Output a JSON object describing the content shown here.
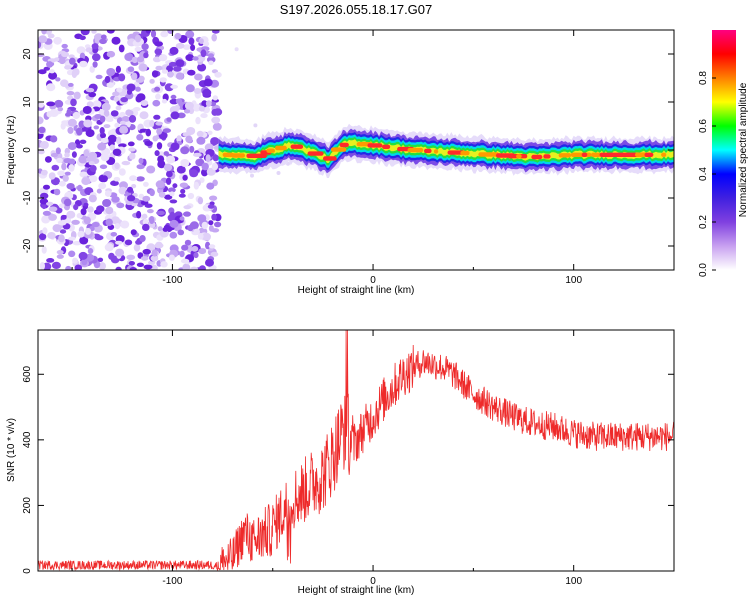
{
  "title": "S197.2026.055.18.17.G07",
  "chart_data": [
    {
      "type": "heatmap",
      "name": "spectrogram",
      "xlabel": "Height of straight line (km)",
      "ylabel": "Frequency (Hz)",
      "xlim": [
        -167,
        150
      ],
      "ylim": [
        -25,
        25
      ],
      "xticks": [
        -100,
        0,
        100
      ],
      "xtick_labels": [
        "-100",
        "0",
        "100"
      ],
      "yticks": [
        -20,
        -10,
        0,
        10,
        20
      ],
      "ytick_labels": [
        "-20",
        "-10",
        "0",
        "10",
        "20"
      ],
      "noise_region_x": [
        -167,
        -77
      ],
      "signal_start_x": -77,
      "ridge": {
        "x": [
          -77,
          -70,
          -60,
          -50,
          -40,
          -30,
          -22,
          -15,
          -10,
          0,
          10,
          20,
          40,
          60,
          80,
          100,
          120,
          150
        ],
        "freq_hz": [
          -1,
          -1,
          -1.5,
          0,
          1,
          -0.5,
          -2,
          1,
          1.5,
          1,
          0.5,
          0,
          -0.5,
          -1,
          -1.5,
          -1,
          -1,
          -1
        ]
      },
      "colorbar": {
        "label": "Normalized spectral amplitude",
        "range": [
          0,
          1
        ],
        "ticks": [
          0.0,
          0.2,
          0.4,
          0.6,
          0.8
        ],
        "tick_labels": [
          "0.0",
          "0.2",
          "0.4",
          "0.6",
          "0.8"
        ],
        "colors": [
          "#ffffff",
          "#c8a0f0",
          "#8040e0",
          "#4020e0",
          "#0000ff",
          "#00ffff",
          "#00ff00",
          "#ffff00",
          "#ff8000",
          "#ff0000",
          "#ff0080"
        ]
      }
    },
    {
      "type": "line",
      "name": "snr",
      "xlabel": "Height of straight line (km)",
      "ylabel": "SNR (10 * v/v)",
      "xlim": [
        -167,
        150
      ],
      "ylim": [
        0,
        735
      ],
      "xticks": [
        -100,
        0,
        100
      ],
      "xtick_labels": [
        "-100",
        "0",
        "100"
      ],
      "yticks": [
        0,
        200,
        400,
        600
      ],
      "ytick_labels": [
        "0",
        "200",
        "400",
        "600"
      ],
      "line_color": "#ee2a2a",
      "series": [
        {
          "name": "SNR",
          "x": [
            -167,
            -150,
            -130,
            -110,
            -90,
            -78,
            -70,
            -64,
            -60,
            -55,
            -50,
            -45,
            -40,
            -35,
            -30,
            -25,
            -20,
            -15,
            -12,
            -10,
            -5,
            0,
            5,
            10,
            15,
            20,
            25,
            30,
            35,
            40,
            45,
            50,
            60,
            70,
            80,
            90,
            100,
            110,
            120,
            130,
            140,
            150
          ],
          "y": [
            18,
            18,
            18,
            18,
            18,
            18,
            40,
            120,
            90,
            110,
            130,
            180,
            220,
            240,
            270,
            290,
            350,
            430,
            420,
            380,
            430,
            470,
            520,
            560,
            600,
            620,
            640,
            630,
            620,
            600,
            570,
            540,
            500,
            470,
            450,
            440,
            420,
            410,
            410,
            410,
            410,
            410
          ]
        }
      ]
    }
  ]
}
